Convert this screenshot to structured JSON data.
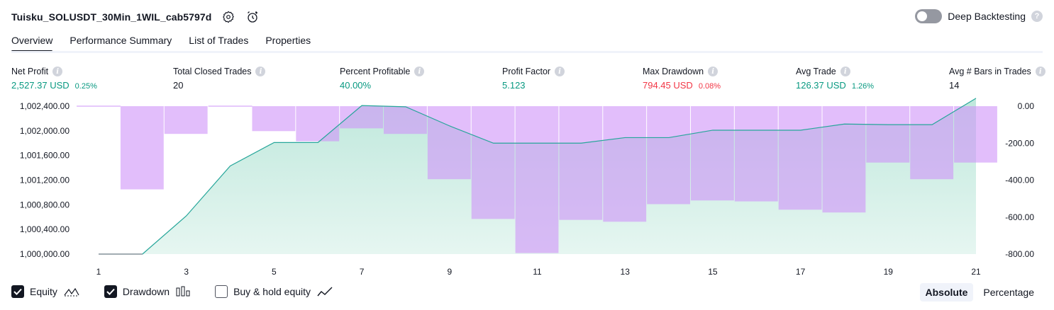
{
  "header": {
    "strategy_name": "Tuisku_SOLUSDT_30Min_1WIL_cab5797d",
    "settings_icon": "gear-icon",
    "alert_icon": "alarm-clock-icon",
    "deep_backtesting_label": "Deep Backtesting",
    "deep_backtesting_on": false
  },
  "tabs": [
    {
      "label": "Overview",
      "active": true
    },
    {
      "label": "Performance Summary",
      "active": false
    },
    {
      "label": "List of Trades",
      "active": false
    },
    {
      "label": "Properties",
      "active": false
    }
  ],
  "metrics": [
    {
      "label": "Net Profit",
      "value": "2,527.37 USD",
      "pct": "0.25%",
      "tone": "pos"
    },
    {
      "label": "Total Closed Trades",
      "value": "20",
      "pct": "",
      "tone": "neu"
    },
    {
      "label": "Percent Profitable",
      "value": "40.00%",
      "pct": "",
      "tone": "pos"
    },
    {
      "label": "Profit Factor",
      "value": "5.123",
      "pct": "",
      "tone": "pos"
    },
    {
      "label": "Max Drawdown",
      "value": "794.45 USD",
      "pct": "0.08%",
      "tone": "neg"
    },
    {
      "label": "Avg Trade",
      "value": "126.37 USD",
      "pct": "1.26%",
      "tone": "pos"
    },
    {
      "label": "Avg # Bars in Trades",
      "value": "14",
      "pct": "",
      "tone": "neu"
    }
  ],
  "chart_data": {
    "type": "area",
    "x": [
      1,
      2,
      3,
      4,
      5,
      6,
      7,
      8,
      9,
      10,
      11,
      12,
      13,
      14,
      15,
      16,
      17,
      18,
      19,
      20,
      21
    ],
    "x_ticks": [
      "1",
      "3",
      "5",
      "7",
      "9",
      "11",
      "13",
      "15",
      "17",
      "19",
      "21"
    ],
    "left_ticks": [
      "1,002,400.00",
      "1,002,000.00",
      "1,001,600.00",
      "1,001,200.00",
      "1,000,800.00",
      "1,000,400.00",
      "1,000,000.00"
    ],
    "right_ticks": [
      "0.00",
      "-200.00",
      "-400.00",
      "-600.00",
      "-800.00"
    ],
    "left_ylim": [
      1000000,
      1002400
    ],
    "right_ylim": [
      -800,
      0
    ],
    "series": [
      {
        "name": "Equity",
        "values": [
          1000000,
          1000000,
          1000620,
          1001430,
          1001810,
          1001810,
          1002410,
          1002390,
          1002080,
          1001800,
          1001800,
          1001800,
          1001890,
          1001890,
          1002010,
          1002010,
          1002010,
          1002110,
          1002100,
          1002100,
          1002527.37
        ],
        "color": "#26a69a",
        "fill": "#d2f0e8"
      },
      {
        "name": "Drawdown",
        "values": [
          0,
          -450,
          -150,
          0,
          -135,
          -190,
          -120,
          -150,
          -395,
          -610,
          -794.45,
          -615,
          -625,
          -530,
          -510,
          -515,
          -560,
          -575,
          -305,
          -395,
          -305
        ],
        "color": "#ce93f8"
      }
    ],
    "legend": [
      {
        "label": "Equity",
        "checked": true,
        "icon": "equity-line-icon"
      },
      {
        "label": "Drawdown",
        "checked": true,
        "icon": "drawdown-bars-icon"
      },
      {
        "label": "Buy & hold equity",
        "checked": false,
        "icon": "buy-hold-line-icon"
      }
    ]
  },
  "mode": {
    "absolute_label": "Absolute",
    "percentage_label": "Percentage",
    "selected": "Absolute"
  }
}
